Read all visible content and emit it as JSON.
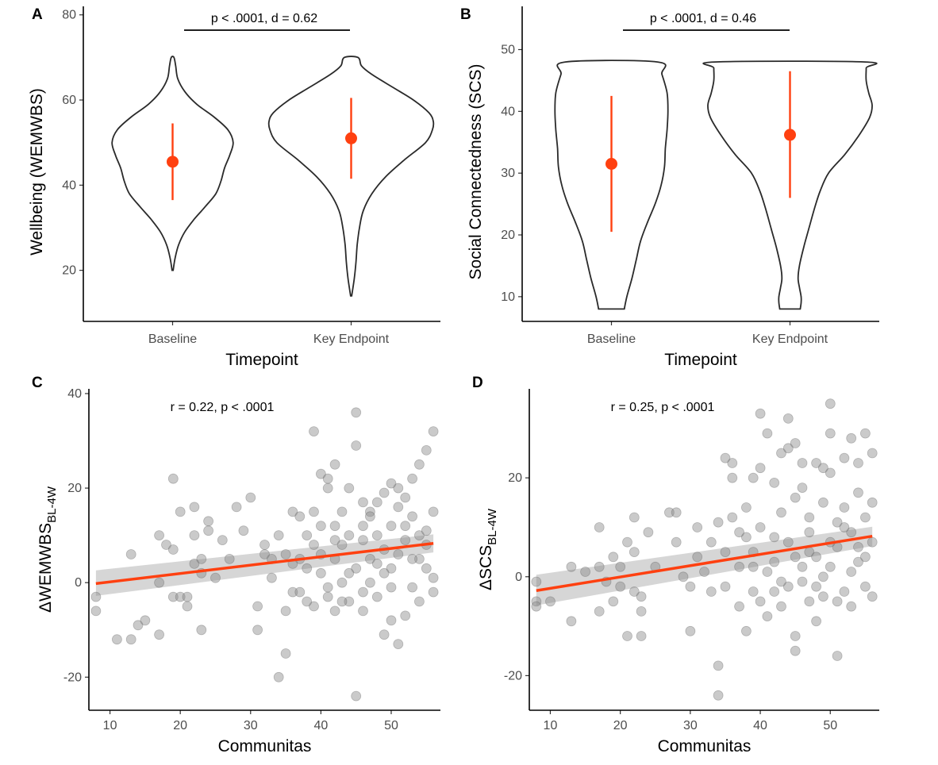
{
  "colors": {
    "accent": "#ff4010",
    "point": "#8a8a8a",
    "violin": "#2a2a2a",
    "ribbon": "#c8c8c8"
  },
  "chart_data": [
    {
      "panel": "A",
      "type": "violin",
      "xlabel": "Timepoint",
      "ylabel": "Wellbeing (WEMWBS)",
      "categories": [
        "Baseline",
        "Key Endpoint"
      ],
      "ylim": [
        8,
        82
      ],
      "yticks": [
        20,
        40,
        60,
        80
      ],
      "annotation": "p < .0001, d = 0.62",
      "groups": [
        {
          "category": "Baseline",
          "mean": 45.5,
          "sd_low": 36.5,
          "sd_high": 54.5,
          "min": 20,
          "max": 70,
          "profile": [
            [
              20,
              0.3
            ],
            [
              23,
              1.5
            ],
            [
              26,
              3.5
            ],
            [
              29,
              7
            ],
            [
              32,
              12.5
            ],
            [
              35,
              19
            ],
            [
              38,
              25
            ],
            [
              41,
              28
            ],
            [
              44,
              30
            ],
            [
              47,
              33
            ],
            [
              50,
              35
            ],
            [
              53,
              32
            ],
            [
              56,
              24
            ],
            [
              59,
              14
            ],
            [
              62,
              7
            ],
            [
              65,
              3
            ],
            [
              68,
              1.8
            ],
            [
              70,
              0.8
            ]
          ]
        },
        {
          "category": "Key Endpoint",
          "mean": 51,
          "sd_low": 41.5,
          "sd_high": 60.5,
          "min": 14,
          "max": 70,
          "profile": [
            [
              14,
              0.3
            ],
            [
              18,
              1.8
            ],
            [
              22,
              2.8
            ],
            [
              26,
              3.5
            ],
            [
              30,
              4.8
            ],
            [
              34,
              7
            ],
            [
              38,
              12
            ],
            [
              42,
              20
            ],
            [
              46,
              31
            ],
            [
              50,
              43
            ],
            [
              53,
              47
            ],
            [
              55,
              47.5
            ],
            [
              57,
              45
            ],
            [
              60,
              36
            ],
            [
              63,
              24
            ],
            [
              66,
              12
            ],
            [
              68,
              6
            ],
            [
              70,
              4
            ]
          ]
        }
      ]
    },
    {
      "panel": "B",
      "type": "violin",
      "xlabel": "Timepoint",
      "ylabel": "Social Connectedness (SCS)",
      "categories": [
        "Baseline",
        "Key Endpoint"
      ],
      "ylim": [
        6,
        57
      ],
      "yticks": [
        10,
        20,
        30,
        40,
        50
      ],
      "annotation": "p < .0001, d = 0.46",
      "groups": [
        {
          "category": "Baseline",
          "mean": 31.5,
          "sd_low": 20.5,
          "sd_high": 42.5,
          "min": 8,
          "max": 48,
          "profile": [
            [
              8,
              15
            ],
            [
              10,
              18
            ],
            [
              13,
              24
            ],
            [
              16,
              29
            ],
            [
              19,
              34
            ],
            [
              22,
              42
            ],
            [
              25,
              51
            ],
            [
              28,
              58
            ],
            [
              31,
              62
            ],
            [
              34,
              63
            ],
            [
              37,
              65
            ],
            [
              40,
              66
            ],
            [
              43,
              65
            ],
            [
              46,
              59
            ],
            [
              48,
              54
            ]
          ]
        },
        {
          "category": "Key Endpoint",
          "mean": 36.2,
          "sd_low": 26,
          "sd_high": 46.5,
          "min": 8,
          "max": 48,
          "profile": [
            [
              8,
              12
            ],
            [
              9,
              13
            ],
            [
              10,
              13
            ],
            [
              11.5,
              11
            ],
            [
              13,
              9.5
            ],
            [
              15,
              11
            ],
            [
              18,
              16
            ],
            [
              21,
              22
            ],
            [
              24,
              28
            ],
            [
              27,
              35
            ],
            [
              30,
              45
            ],
            [
              33,
              64
            ],
            [
              36,
              80
            ],
            [
              39,
              93
            ],
            [
              41,
              96
            ],
            [
              43,
              92
            ],
            [
              45,
              89
            ],
            [
              47,
              89
            ],
            [
              48,
              88
            ]
          ]
        }
      ]
    },
    {
      "panel": "C",
      "type": "scatter",
      "xlabel": "Communitas",
      "ylabel": "ΔWEMWBS",
      "ylabel_sub": "BL-4W",
      "xlim": [
        7,
        57
      ],
      "ylim": [
        -27,
        41
      ],
      "xticks": [
        10,
        20,
        30,
        40,
        50
      ],
      "yticks": [
        -20,
        0,
        20,
        40
      ],
      "annotation": "r = 0.22, p < .0001",
      "fit": {
        "x": [
          8,
          56
        ],
        "y": [
          -0.2,
          8.3
        ],
        "band_lo_left": -2.8,
        "band_hi_left": 2.6,
        "band_lo_right": 6.4,
        "band_hi_right": 10.2
      },
      "points": [
        [
          8,
          -3
        ],
        [
          8,
          -6
        ],
        [
          11,
          -12
        ],
        [
          13,
          -12
        ],
        [
          13,
          6
        ],
        [
          14,
          -9
        ],
        [
          15,
          -8
        ],
        [
          17,
          10
        ],
        [
          17,
          -11
        ],
        [
          17,
          0
        ],
        [
          18,
          8
        ],
        [
          19,
          -3
        ],
        [
          19,
          7
        ],
        [
          19,
          22
        ],
        [
          20,
          15
        ],
        [
          20,
          -3
        ],
        [
          21,
          -3
        ],
        [
          21,
          -5
        ],
        [
          22,
          16
        ],
        [
          22,
          10
        ],
        [
          22,
          4
        ],
        [
          23,
          5
        ],
        [
          23,
          -10
        ],
        [
          23,
          2
        ],
        [
          24,
          13
        ],
        [
          24,
          11
        ],
        [
          25,
          1
        ],
        [
          26,
          9
        ],
        [
          27,
          5
        ],
        [
          28,
          16
        ],
        [
          29,
          11
        ],
        [
          30,
          18
        ],
        [
          31,
          -10
        ],
        [
          31,
          -5
        ],
        [
          32,
          6
        ],
        [
          32,
          8
        ],
        [
          33,
          1
        ],
        [
          33,
          5
        ],
        [
          34,
          -20
        ],
        [
          34,
          10
        ],
        [
          35,
          6
        ],
        [
          35,
          -6
        ],
        [
          35,
          -15
        ],
        [
          36,
          15
        ],
        [
          36,
          -2
        ],
        [
          37,
          14
        ],
        [
          37,
          5
        ],
        [
          38,
          10
        ],
        [
          38,
          3
        ],
        [
          39,
          32
        ],
        [
          39,
          -5
        ],
        [
          39,
          8
        ],
        [
          39,
          15
        ],
        [
          40,
          23
        ],
        [
          40,
          12
        ],
        [
          40,
          2
        ],
        [
          41,
          -3
        ],
        [
          41,
          20
        ],
        [
          41,
          22
        ],
        [
          42,
          25
        ],
        [
          42,
          -6
        ],
        [
          42,
          12
        ],
        [
          42,
          5
        ],
        [
          43,
          15
        ],
        [
          43,
          0
        ],
        [
          43,
          8
        ],
        [
          44,
          10
        ],
        [
          44,
          -4
        ],
        [
          44,
          20
        ],
        [
          45,
          29
        ],
        [
          45,
          -24
        ],
        [
          45,
          36
        ],
        [
          45,
          3
        ],
        [
          46,
          9
        ],
        [
          46,
          12
        ],
        [
          46,
          -2
        ],
        [
          47,
          0
        ],
        [
          47,
          5
        ],
        [
          47,
          15
        ],
        [
          48,
          10
        ],
        [
          48,
          4
        ],
        [
          48,
          -3
        ],
        [
          49,
          7
        ],
        [
          49,
          -11
        ],
        [
          49,
          19
        ],
        [
          50,
          21
        ],
        [
          50,
          -8
        ],
        [
          50,
          12
        ],
        [
          50,
          3
        ],
        [
          51,
          20
        ],
        [
          51,
          16
        ],
        [
          51,
          -13
        ],
        [
          52,
          18
        ],
        [
          52,
          -7
        ],
        [
          52,
          9
        ],
        [
          53,
          14
        ],
        [
          53,
          22
        ],
        [
          53,
          -1
        ],
        [
          54,
          25
        ],
        [
          54,
          10
        ],
        [
          54,
          5
        ],
        [
          54,
          -4
        ],
        [
          55,
          28
        ],
        [
          55,
          8
        ],
        [
          55,
          3
        ],
        [
          56,
          32
        ],
        [
          56,
          15
        ],
        [
          56,
          1
        ],
        [
          56,
          -2
        ],
        [
          38,
          -4
        ],
        [
          40,
          6
        ],
        [
          41,
          -1
        ],
        [
          42,
          9
        ],
        [
          44,
          2
        ],
        [
          46,
          -6
        ],
        [
          47,
          14
        ],
        [
          48,
          17
        ],
        [
          49,
          2
        ],
        [
          51,
          6
        ],
        [
          53,
          5
        ],
        [
          55,
          11
        ],
        [
          36,
          4
        ],
        [
          37,
          -2
        ],
        [
          43,
          -4
        ],
        [
          46,
          17
        ],
        [
          50,
          -1
        ],
        [
          52,
          12
        ]
      ]
    },
    {
      "panel": "D",
      "type": "scatter",
      "xlabel": "Communitas",
      "ylabel": "ΔSCS",
      "ylabel_sub": "BL-4W",
      "xlim": [
        7,
        57
      ],
      "ylim": [
        -27,
        38
      ],
      "xticks": [
        10,
        20,
        30,
        40,
        50
      ],
      "yticks": [
        -20,
        0,
        20
      ],
      "annotation": "r = 0.25, p < .0001",
      "fit": {
        "x": [
          8,
          56
        ],
        "y": [
          -2.8,
          8.2
        ],
        "band_lo_left": -5.8,
        "band_hi_left": 0.4,
        "band_lo_right": 6.2,
        "band_hi_right": 10.1
      },
      "points": [
        [
          8,
          -1
        ],
        [
          8,
          -5
        ],
        [
          8,
          -6
        ],
        [
          10,
          -5
        ],
        [
          13,
          2
        ],
        [
          13,
          -9
        ],
        [
          15,
          1
        ],
        [
          17,
          2
        ],
        [
          17,
          -7
        ],
        [
          17,
          10
        ],
        [
          18,
          -1
        ],
        [
          19,
          4
        ],
        [
          19,
          -5
        ],
        [
          20,
          -2
        ],
        [
          20,
          2
        ],
        [
          21,
          -12
        ],
        [
          21,
          7
        ],
        [
          22,
          12
        ],
        [
          22,
          -3
        ],
        [
          22,
          5
        ],
        [
          23,
          -4
        ],
        [
          23,
          -7
        ],
        [
          23,
          -12
        ],
        [
          24,
          9
        ],
        [
          25,
          2
        ],
        [
          27,
          13
        ],
        [
          28,
          13
        ],
        [
          28,
          7
        ],
        [
          29,
          0
        ],
        [
          30,
          -11
        ],
        [
          30,
          -2
        ],
        [
          31,
          4
        ],
        [
          31,
          10
        ],
        [
          32,
          1
        ],
        [
          33,
          -3
        ],
        [
          33,
          7
        ],
        [
          34,
          11
        ],
        [
          34,
          -18
        ],
        [
          34,
          -24
        ],
        [
          35,
          24
        ],
        [
          35,
          5
        ],
        [
          35,
          -2
        ],
        [
          36,
          20
        ],
        [
          36,
          23
        ],
        [
          36,
          12
        ],
        [
          37,
          2
        ],
        [
          37,
          -6
        ],
        [
          38,
          14
        ],
        [
          38,
          -11
        ],
        [
          38,
          8
        ],
        [
          39,
          20
        ],
        [
          39,
          2
        ],
        [
          39,
          -3
        ],
        [
          40,
          33
        ],
        [
          40,
          22
        ],
        [
          40,
          10
        ],
        [
          40,
          -5
        ],
        [
          41,
          29
        ],
        [
          41,
          -8
        ],
        [
          42,
          19
        ],
        [
          42,
          3
        ],
        [
          42,
          -3
        ],
        [
          43,
          25
        ],
        [
          43,
          13
        ],
        [
          43,
          -6
        ],
        [
          44,
          32
        ],
        [
          44,
          26
        ],
        [
          44,
          7
        ],
        [
          44,
          -2
        ],
        [
          45,
          27
        ],
        [
          45,
          16
        ],
        [
          45,
          -12
        ],
        [
          45,
          -15
        ],
        [
          46,
          23
        ],
        [
          46,
          18
        ],
        [
          46,
          -1
        ],
        [
          47,
          12
        ],
        [
          47,
          5
        ],
        [
          47,
          -5
        ],
        [
          48,
          23
        ],
        [
          48,
          4
        ],
        [
          48,
          -9
        ],
        [
          49,
          15
        ],
        [
          49,
          -4
        ],
        [
          49,
          22
        ],
        [
          50,
          35
        ],
        [
          50,
          29
        ],
        [
          50,
          21
        ],
        [
          50,
          2
        ],
        [
          51,
          11
        ],
        [
          51,
          -16
        ],
        [
          51,
          6
        ],
        [
          52,
          24
        ],
        [
          52,
          -3
        ],
        [
          52,
          14
        ],
        [
          53,
          28
        ],
        [
          53,
          9
        ],
        [
          53,
          1
        ],
        [
          54,
          23
        ],
        [
          54,
          17
        ],
        [
          54,
          6
        ],
        [
          55,
          29
        ],
        [
          55,
          12
        ],
        [
          55,
          -2
        ],
        [
          56,
          25
        ],
        [
          56,
          15
        ],
        [
          56,
          7
        ],
        [
          56,
          -4
        ],
        [
          41,
          1
        ],
        [
          42,
          8
        ],
        [
          43,
          -1
        ],
        [
          46,
          2
        ],
        [
          47,
          9
        ],
        [
          48,
          -2
        ],
        [
          50,
          7
        ],
        [
          52,
          10
        ],
        [
          54,
          3
        ],
        [
          39,
          5
        ],
        [
          37,
          9
        ],
        [
          45,
          4
        ],
        [
          49,
          0
        ],
        [
          51,
          -5
        ],
        [
          53,
          -6
        ],
        [
          55,
          4
        ]
      ]
    }
  ]
}
